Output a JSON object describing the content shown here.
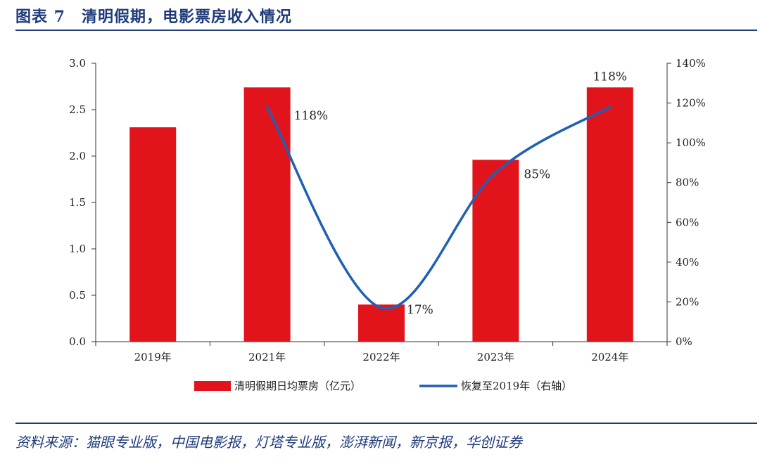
{
  "header": {
    "title": "图表 7　清明假期，电影票房收入情况"
  },
  "footer": {
    "source": "资料来源：猫眼专业版，中国电影报，灯塔专业版，澎湃新闻，新京报，华创证券"
  },
  "colors": {
    "bar": "#e1141c",
    "line": "#1f5fb5",
    "accent": "#1f3b7a"
  },
  "chart_data": {
    "type": "bar+line",
    "categories": [
      "2019年",
      "2021年",
      "2022年",
      "2023年",
      "2024年"
    ],
    "series": [
      {
        "name": "清明假期日均票房（亿元）",
        "type": "bar",
        "axis": "left",
        "values": [
          2.31,
          2.74,
          0.4,
          1.96,
          2.74
        ]
      },
      {
        "name": "恢复至2019年（右轴）",
        "type": "line",
        "axis": "right",
        "values": [
          null,
          118,
          17,
          85,
          118
        ],
        "labels": [
          null,
          "118%",
          "17%",
          "85%",
          "118%"
        ]
      }
    ],
    "y_left": {
      "min": 0,
      "max": 3.0,
      "ticks": [
        "0.0",
        "0.5",
        "1.0",
        "1.5",
        "2.0",
        "2.5",
        "3.0"
      ]
    },
    "y_right": {
      "min": 0,
      "max": 140,
      "ticks": [
        "0%",
        "20%",
        "40%",
        "60%",
        "80%",
        "100%",
        "120%",
        "140%"
      ]
    },
    "legend": "bottom",
    "grid": false
  }
}
